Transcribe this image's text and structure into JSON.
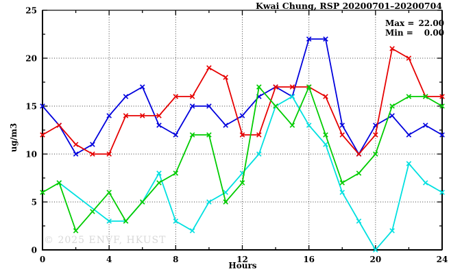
{
  "watermark": "© 2025 ENVF, HKUST",
  "stats": {
    "max_label": "Max =",
    "max_value": "22.00",
    "min_label": "Min =",
    "min_value": "0.00"
  },
  "chart_data": {
    "type": "line",
    "title": "Kwai Chung, RSP 20200701–20200704",
    "xlabel": "Hours",
    "ylabel": "ug/m3",
    "xlim": [
      0,
      24
    ],
    "ylim": [
      0,
      25
    ],
    "grid": "dotted lines at major ticks, mirrored inward ticks on all four borders",
    "legend_position": "none",
    "x_tick_values": [
      0,
      4,
      8,
      12,
      16,
      20,
      24
    ],
    "x_tick_labels": [
      "0",
      "4",
      "8",
      "12",
      "16",
      "20",
      "24"
    ],
    "x_minor_ticks": [
      2,
      6,
      10,
      14,
      18,
      22
    ],
    "y_tick_values": [
      0,
      5,
      10,
      15,
      20,
      25
    ],
    "y_tick_labels": [
      "0",
      "5",
      "10",
      "15",
      "20",
      "25"
    ],
    "y_minor_ticks": [
      2.5,
      7.5,
      12.5,
      17.5,
      22.5
    ],
    "marker": "x-cross",
    "x": [
      0,
      1,
      2,
      3,
      4,
      5,
      6,
      7,
      8,
      9,
      10,
      11,
      12,
      13,
      14,
      15,
      16,
      17,
      18,
      19,
      20,
      21,
      22,
      23,
      24
    ],
    "series": [
      {
        "name": "blue",
        "color": "#0000dd",
        "values": [
          15,
          13,
          10,
          11,
          14,
          16,
          17,
          13,
          12,
          15,
          15,
          13,
          14,
          16,
          17,
          16,
          22,
          22,
          13,
          10,
          13,
          14,
          12,
          13,
          12
        ]
      },
      {
        "name": "red",
        "color": "#e60000",
        "values": [
          12,
          13,
          11,
          10,
          10,
          14,
          14,
          14,
          16,
          16,
          19,
          18,
          12,
          12,
          17,
          17,
          17,
          16,
          12,
          10,
          12,
          21,
          20,
          16,
          16
        ]
      },
      {
        "name": "cyan",
        "color": "#00e0e0",
        "values": [
          null,
          7,
          null,
          null,
          3,
          3,
          5,
          8,
          3,
          2,
          5,
          6,
          8,
          10,
          15,
          16,
          13,
          11,
          6,
          3,
          0,
          2,
          9,
          7,
          6
        ]
      },
      {
        "name": "green",
        "color": "#00cc00",
        "values": [
          6,
          7,
          2,
          4,
          6,
          3,
          5,
          7,
          8,
          12,
          12,
          5,
          7,
          17,
          15,
          13,
          17,
          12,
          7,
          8,
          10,
          15,
          16,
          16,
          15
        ]
      }
    ],
    "annotations": {
      "max": 22.0,
      "min": 0.0
    }
  }
}
